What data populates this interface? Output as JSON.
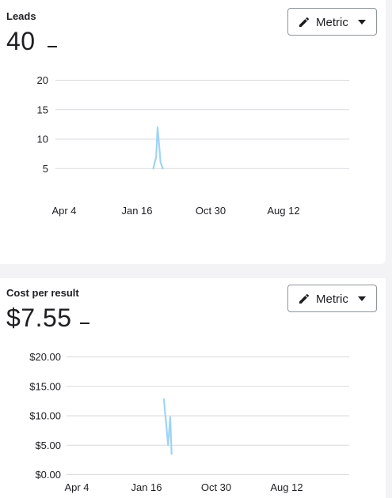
{
  "colors": {
    "series_line": "#9fd4f5",
    "grid_line": "#d8dadf",
    "text": "#1c1e21",
    "button_border": "#8d949e"
  },
  "leads": {
    "title": "Leads",
    "value": "40",
    "button": {
      "label": "Metric",
      "icon": "pencil-icon",
      "caret_icon": "caret-down-icon"
    }
  },
  "cost_per_result": {
    "title": "Cost per result",
    "value": "$7.55",
    "button": {
      "label": "Metric",
      "icon": "pencil-icon",
      "caret_icon": "caret-down-icon"
    }
  },
  "chart_data": [
    {
      "type": "line",
      "ylim": [
        0,
        20
      ],
      "y_ticks": [
        5,
        10,
        15,
        20
      ],
      "y_tick_labels": [
        "5",
        "10",
        "15",
        "20"
      ],
      "x_tick_labels": [
        "Apr 4",
        "Jan 16",
        "Oct 30",
        "Aug 12"
      ],
      "grid": true,
      "series": [
        {
          "x": [
            1.22,
            1.26,
            1.28,
            1.32,
            1.35
          ],
          "y": [
            5,
            7,
            12,
            6,
            5
          ]
        }
      ]
    },
    {
      "type": "line",
      "ylim": [
        0,
        20
      ],
      "y_ticks": [
        0,
        5,
        10,
        15,
        20
      ],
      "y_tick_labels": [
        "$0.00",
        "$5.00",
        "$10.00",
        "$15.00",
        "$20.00"
      ],
      "x_tick_labels": [
        "Apr 4",
        "Jan 16",
        "Oct 30",
        "Aug 12"
      ],
      "grid": true,
      "series": [
        {
          "x": [
            1.25,
            1.31,
            1.34,
            1.36
          ],
          "y": [
            12.8,
            5.0,
            9.8,
            3.5
          ]
        }
      ]
    }
  ]
}
